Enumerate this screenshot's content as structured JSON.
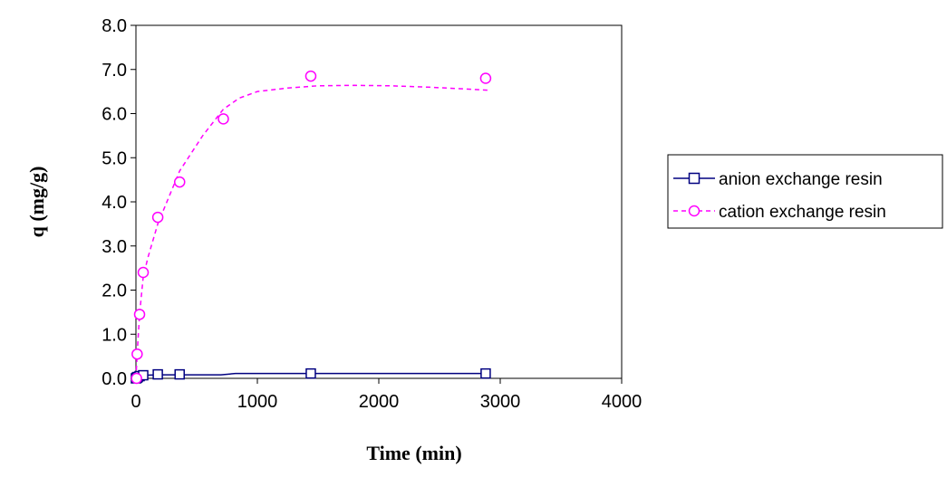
{
  "chart_data": {
    "type": "scatter",
    "title": "",
    "xlabel": "Time (min)",
    "ylabel": "q (mg/g)",
    "xlim": [
      0,
      4000
    ],
    "ylim": [
      0,
      8.0
    ],
    "x_ticks": [
      0,
      1000,
      2000,
      3000,
      4000
    ],
    "y_ticks": [
      0.0,
      1.0,
      2.0,
      3.0,
      4.0,
      5.0,
      6.0,
      7.0,
      8.0
    ],
    "x_tick_labels": [
      "0",
      "1000",
      "2000",
      "3000",
      "4000"
    ],
    "y_tick_labels": [
      "0.0",
      "1.0",
      "2.0",
      "3.0",
      "4.0",
      "5.0",
      "6.0",
      "7.0",
      "8.0"
    ],
    "grid": false,
    "legend_position": "right",
    "series": [
      {
        "name": "anion exchange resin",
        "color": "#000080",
        "marker": "square",
        "line_style": "solid",
        "points": [
          [
            0,
            0.0
          ],
          [
            5,
            0.01
          ],
          [
            10,
            0.02
          ],
          [
            15,
            0.03
          ],
          [
            30,
            0.05
          ],
          [
            60,
            0.07
          ],
          [
            180,
            0.09
          ],
          [
            360,
            0.09
          ],
          [
            1440,
            0.11
          ],
          [
            2880,
            0.11
          ]
        ],
        "fit": [
          [
            0,
            0.0
          ],
          [
            5,
            0.01
          ],
          [
            10,
            0.02
          ],
          [
            15,
            0.03
          ],
          [
            30,
            0.05
          ],
          [
            60,
            0.07
          ],
          [
            180,
            0.08
          ],
          [
            360,
            0.08
          ],
          [
            700,
            0.08
          ],
          [
            820,
            0.11
          ],
          [
            1440,
            0.11
          ],
          [
            2880,
            0.11
          ]
        ]
      },
      {
        "name": "cation exchange resin",
        "color": "#FF00FF",
        "marker": "circle",
        "line_style": "dashed",
        "points": [
          [
            5,
            0.0
          ],
          [
            10,
            0.55
          ],
          [
            30,
            1.45
          ],
          [
            60,
            2.4
          ],
          [
            180,
            3.65
          ],
          [
            360,
            4.45
          ],
          [
            720,
            5.88
          ],
          [
            1440,
            6.85
          ],
          [
            2880,
            6.8
          ]
        ],
        "fit": [
          [
            0,
            0.0
          ],
          [
            10,
            0.55
          ],
          [
            30,
            1.45
          ],
          [
            60,
            2.3
          ],
          [
            100,
            2.75
          ],
          [
            180,
            3.5
          ],
          [
            360,
            4.7
          ],
          [
            550,
            5.5
          ],
          [
            720,
            6.1
          ],
          [
            850,
            6.35
          ],
          [
            1000,
            6.5
          ],
          [
            1250,
            6.58
          ],
          [
            1500,
            6.63
          ],
          [
            1800,
            6.64
          ],
          [
            2100,
            6.63
          ],
          [
            2400,
            6.6
          ],
          [
            2700,
            6.56
          ],
          [
            2900,
            6.53
          ]
        ]
      }
    ]
  }
}
